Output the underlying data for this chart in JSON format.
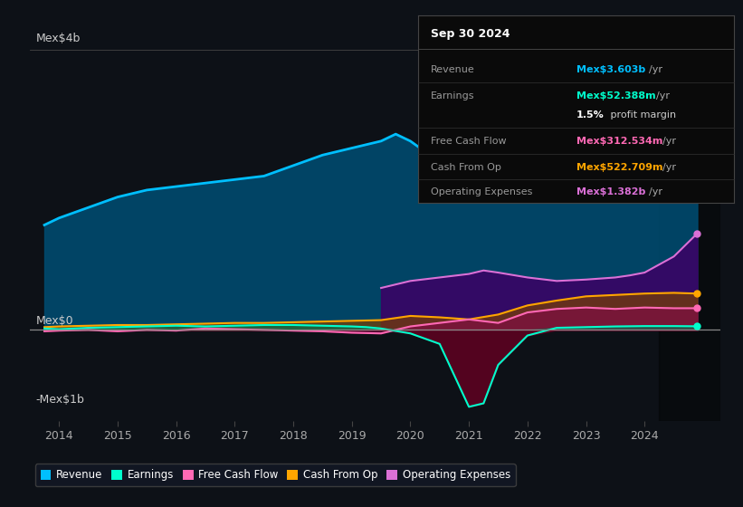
{
  "background_color": "#0d1117",
  "plot_bg_color": "#0d1117",
  "title_box": {
    "date": "Sep 30 2024",
    "rows": [
      {
        "label": "Revenue",
        "value": "Mex$3.603b",
        "unit": "/yr",
        "color": "#00bfff"
      },
      {
        "label": "Earnings",
        "value": "Mex$52.388m",
        "unit": "/yr",
        "color": "#00ffcc"
      },
      {
        "label": "",
        "value": "1.5%",
        "unit": " profit margin",
        "color": "#ffffff"
      },
      {
        "label": "Free Cash Flow",
        "value": "Mex$312.534m",
        "unit": "/yr",
        "color": "#ff69b4"
      },
      {
        "label": "Cash From Op",
        "value": "Mex$522.709m",
        "unit": "/yr",
        "color": "#ffa500"
      },
      {
        "label": "Operating Expenses",
        "value": "Mex$1.382b",
        "unit": "/yr",
        "color": "#da70d6"
      }
    ]
  },
  "ylabel_top": "Mex$4b",
  "ylabel_zero": "Mex$0",
  "ylabel_neg": "-Mex$1b",
  "ylim": [
    -1.3,
    4.5
  ],
  "xlim_start": 2013.5,
  "xlim_end": 2025.3,
  "xticks": [
    2014,
    2015,
    2016,
    2017,
    2018,
    2019,
    2020,
    2021,
    2022,
    2023,
    2024
  ],
  "legend": [
    {
      "label": "Revenue",
      "color": "#00bfff"
    },
    {
      "label": "Earnings",
      "color": "#00ffcc"
    },
    {
      "label": "Free Cash Flow",
      "color": "#ff69b4"
    },
    {
      "label": "Cash From Op",
      "color": "#ffa500"
    },
    {
      "label": "Operating Expenses",
      "color": "#da70d6"
    }
  ],
  "revenue_x": [
    2013.75,
    2014.0,
    2014.5,
    2015.0,
    2015.5,
    2016.0,
    2016.5,
    2017.0,
    2017.5,
    2018.0,
    2018.5,
    2019.0,
    2019.5,
    2019.75,
    2020.0,
    2020.25,
    2020.5,
    2021.0,
    2021.25,
    2021.5,
    2022.0,
    2022.5,
    2023.0,
    2023.5,
    2024.0,
    2024.5,
    2024.9
  ],
  "revenue_y": [
    1.5,
    1.6,
    1.75,
    1.9,
    2.0,
    2.05,
    2.1,
    2.15,
    2.2,
    2.35,
    2.5,
    2.6,
    2.7,
    2.8,
    2.7,
    2.55,
    2.3,
    2.1,
    2.15,
    2.5,
    2.8,
    3.1,
    3.2,
    3.3,
    3.5,
    3.6,
    3.65
  ],
  "earnings_x": [
    2013.75,
    2014.0,
    2014.5,
    2015.0,
    2015.5,
    2016.0,
    2016.5,
    2017.0,
    2017.5,
    2018.0,
    2018.5,
    2019.0,
    2019.25,
    2019.5,
    2020.0,
    2020.5,
    2021.0,
    2021.25,
    2021.5,
    2022.0,
    2022.5,
    2023.0,
    2023.5,
    2024.0,
    2024.5,
    2024.9
  ],
  "earnings_y": [
    0.02,
    0.01,
    0.03,
    0.04,
    0.05,
    0.06,
    0.05,
    0.06,
    0.07,
    0.07,
    0.06,
    0.05,
    0.04,
    0.02,
    -0.05,
    -0.2,
    -1.1,
    -1.05,
    -0.5,
    -0.08,
    0.03,
    0.04,
    0.05,
    0.055,
    0.055,
    0.052
  ],
  "fcf_x": [
    2013.75,
    2014.0,
    2014.5,
    2015.0,
    2015.5,
    2016.0,
    2016.5,
    2017.0,
    2017.5,
    2018.0,
    2018.5,
    2018.75,
    2019.0,
    2019.5,
    2020.0,
    2020.5,
    2021.0,
    2021.5,
    2022.0,
    2022.5,
    2023.0,
    2023.5,
    2024.0,
    2024.5,
    2024.9
  ],
  "fcf_y": [
    -0.02,
    -0.01,
    0.0,
    -0.02,
    0.0,
    -0.01,
    0.02,
    0.01,
    0.0,
    -0.01,
    -0.02,
    -0.03,
    -0.04,
    -0.05,
    0.05,
    0.1,
    0.15,
    0.1,
    0.25,
    0.3,
    0.32,
    0.3,
    0.32,
    0.31,
    0.31
  ],
  "cop_x": [
    2013.75,
    2014.0,
    2014.5,
    2015.0,
    2015.5,
    2016.0,
    2016.5,
    2017.0,
    2017.5,
    2018.0,
    2018.5,
    2019.0,
    2019.5,
    2020.0,
    2020.5,
    2021.0,
    2021.5,
    2022.0,
    2022.5,
    2023.0,
    2023.5,
    2024.0,
    2024.5,
    2024.9
  ],
  "cop_y": [
    0.04,
    0.05,
    0.06,
    0.07,
    0.07,
    0.08,
    0.09,
    0.1,
    0.1,
    0.11,
    0.12,
    0.13,
    0.14,
    0.2,
    0.18,
    0.15,
    0.22,
    0.35,
    0.42,
    0.48,
    0.5,
    0.52,
    0.53,
    0.52
  ],
  "ope_x": [
    2019.5,
    2019.75,
    2020.0,
    2020.5,
    2021.0,
    2021.25,
    2021.5,
    2022.0,
    2022.5,
    2023.0,
    2023.5,
    2023.75,
    2024.0,
    2024.5,
    2024.9
  ],
  "ope_y": [
    0.6,
    0.65,
    0.7,
    0.75,
    0.8,
    0.85,
    0.82,
    0.75,
    0.7,
    0.72,
    0.75,
    0.78,
    0.82,
    1.05,
    1.38
  ]
}
